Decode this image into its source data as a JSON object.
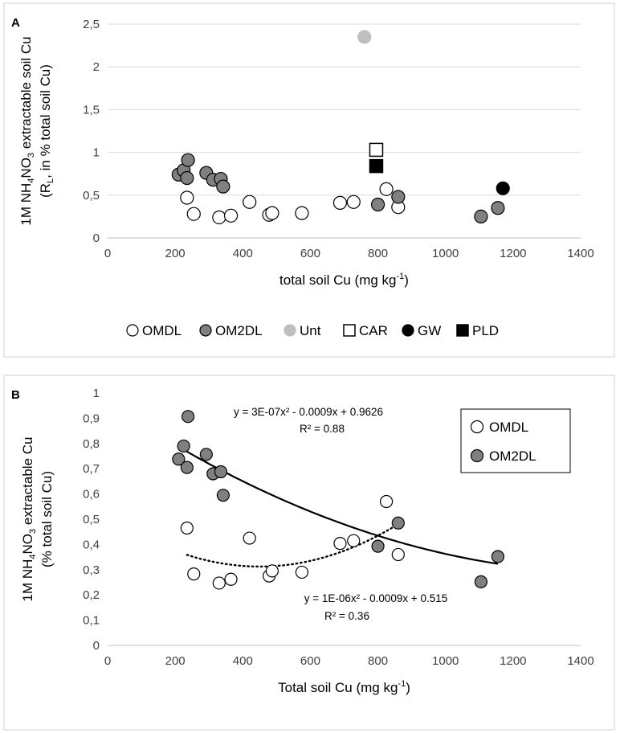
{
  "chart_data": [
    {
      "panel": "A",
      "type": "scatter",
      "xlabel": "total soil Cu (mg kg",
      "xlabel_sup": "-1",
      "xlabel_end": ")",
      "ylabel_line1": {
        "pre": "1M NH",
        "s1": "4",
        "mid": "NO",
        "s2": "3",
        "post": " extractable soil Cu"
      },
      "ylabel_line2": {
        "pre": "(R",
        "sub": "L",
        "post": ", in % total soil Cu)"
      },
      "xlim": [
        0,
        1400
      ],
      "ylim": [
        0,
        2.5
      ],
      "x_ticks": [
        "0",
        "200",
        "400",
        "600",
        "800",
        "1000",
        "1200",
        "1400"
      ],
      "y_ticks": [
        "0",
        "0,5",
        "1",
        "1,5",
        "2",
        "2,5"
      ],
      "grid": "horizontal",
      "legend_position": "bottom",
      "series": [
        {
          "name": "OMDL",
          "marker": "circle-open",
          "points": [
            [
              235,
              0.47
            ],
            [
              255,
              0.28
            ],
            [
              330,
              0.24
            ],
            [
              365,
              0.26
            ],
            [
              420,
              0.42
            ],
            [
              478,
              0.27
            ],
            [
              487,
              0.29
            ],
            [
              575,
              0.29
            ],
            [
              688,
              0.41
            ],
            [
              728,
              0.42
            ],
            [
              825,
              0.57
            ],
            [
              860,
              0.36
            ]
          ]
        },
        {
          "name": "OM2DL",
          "marker": "circle-gray",
          "points": [
            [
              210,
              0.74
            ],
            [
              225,
              0.79
            ],
            [
              235,
              0.7
            ],
            [
              238,
              0.91
            ],
            [
              292,
              0.76
            ],
            [
              312,
              0.68
            ],
            [
              335,
              0.69
            ],
            [
              342,
              0.6
            ],
            [
              800,
              0.39
            ],
            [
              860,
              0.48
            ],
            [
              1105,
              0.25
            ],
            [
              1155,
              0.35
            ]
          ]
        },
        {
          "name": "Unt",
          "marker": "circle-light",
          "points": [
            [
              760,
              2.35
            ]
          ]
        },
        {
          "name": "CAR",
          "marker": "square-open",
          "points": [
            [
              795,
              1.03
            ]
          ]
        },
        {
          "name": "GW",
          "marker": "circle-black",
          "points": [
            [
              1170,
              0.58
            ]
          ]
        },
        {
          "name": "PLD",
          "marker": "square-black",
          "points": [
            [
              795,
              0.84
            ]
          ]
        }
      ]
    },
    {
      "panel": "B",
      "type": "scatter",
      "xlabel": "Total soil Cu (mg kg",
      "xlabel_sup": "-1",
      "xlabel_end": ")",
      "ylabel_line1": {
        "pre": "1M NH",
        "s1": "4",
        "mid": "NO",
        "s2": "3",
        "post": " extractable Cu"
      },
      "ylabel_line2": {
        "pre": "(% total soil Cu)",
        "sub": "",
        "post": ""
      },
      "xlim": [
        0,
        1400
      ],
      "ylim": [
        0,
        1
      ],
      "x_ticks": [
        "0",
        "200",
        "400",
        "600",
        "800",
        "1000",
        "1200",
        "1400"
      ],
      "y_ticks": [
        "0",
        "0,1",
        "0,2",
        "0,3",
        "0,4",
        "0,5",
        "0,6",
        "0,7",
        "0,8",
        "0,9",
        "1"
      ],
      "grid": "none",
      "legend_position": "top-right",
      "series": [
        {
          "name": "OMDL",
          "marker": "circle-open",
          "points": [
            [
              235,
              0.465
            ],
            [
              255,
              0.283
            ],
            [
              330,
              0.247
            ],
            [
              365,
              0.262
            ],
            [
              420,
              0.425
            ],
            [
              478,
              0.275
            ],
            [
              487,
              0.295
            ],
            [
              575,
              0.29
            ],
            [
              688,
              0.404
            ],
            [
              728,
              0.415
            ],
            [
              825,
              0.57
            ],
            [
              860,
              0.36
            ]
          ]
        },
        {
          "name": "OM2DL",
          "marker": "circle-gray",
          "points": [
            [
              210,
              0.738
            ],
            [
              225,
              0.79
            ],
            [
              235,
              0.705
            ],
            [
              238,
              0.907
            ],
            [
              292,
              0.757
            ],
            [
              312,
              0.68
            ],
            [
              335,
              0.688
            ],
            [
              342,
              0.595
            ],
            [
              800,
              0.393
            ],
            [
              860,
              0.485
            ],
            [
              1105,
              0.252
            ],
            [
              1155,
              0.352
            ]
          ]
        }
      ],
      "trendlines": [
        {
          "series": "OM2DL",
          "style": "solid",
          "coef": [
            3e-07,
            -0.0009,
            0.9626
          ],
          "x_range": [
            210,
            1155
          ],
          "equation": "y = 3E-07x² - 0.0009x + 0.9626",
          "r2": "R² = 0.88"
        },
        {
          "series": "OMDL",
          "style": "dotted",
          "coef": [
            1e-06,
            -0.0009,
            0.515
          ],
          "x_range": [
            235,
            860
          ],
          "equation": "y = 1E-06x² - 0.0009x + 0.515",
          "r2": "R² = 0.36"
        }
      ]
    }
  ]
}
